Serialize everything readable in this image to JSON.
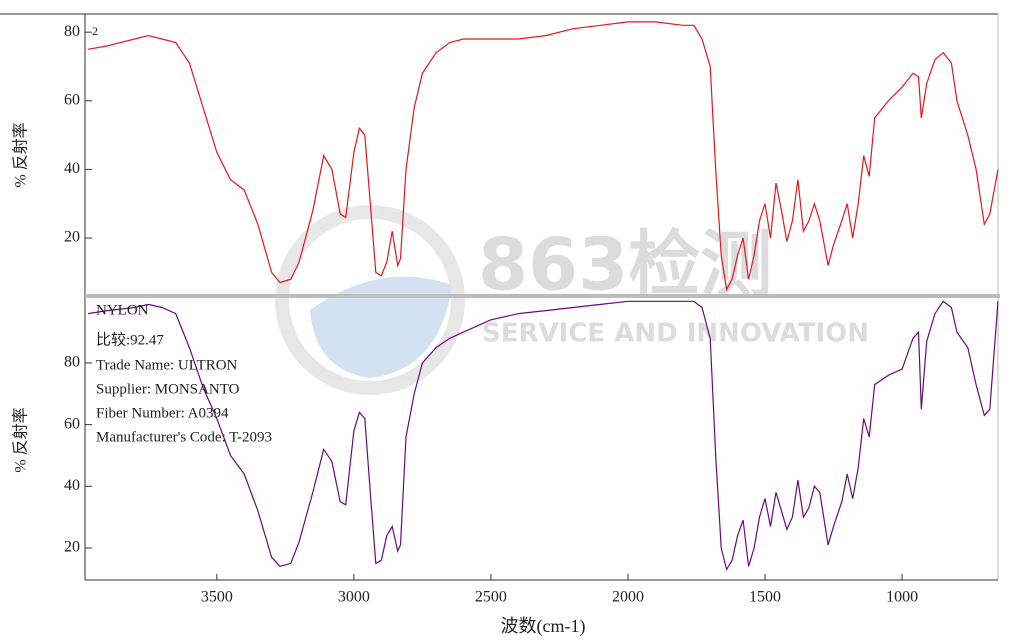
{
  "chart_data": [
    {
      "type": "line",
      "color": "#e8141c",
      "y_label": "% 反射率",
      "annotations": [
        "2"
      ],
      "xlim": [
        3970,
        650
      ],
      "ylim": [
        3.4,
        85
      ],
      "yticks": [
        20,
        40,
        60,
        80
      ],
      "x": [
        3970,
        3900,
        3800,
        3750,
        3700,
        3650,
        3600,
        3550,
        3500,
        3450,
        3400,
        3350,
        3300,
        3270,
        3230,
        3200,
        3150,
        3110,
        3080,
        3050,
        3030,
        3000,
        2980,
        2960,
        2940,
        2920,
        2900,
        2880,
        2860,
        2840,
        2830,
        2810,
        2780,
        2750,
        2700,
        2650,
        2600,
        2500,
        2400,
        2300,
        2200,
        2100,
        2000,
        1900,
        1800,
        1760,
        1730,
        1700,
        1680,
        1660,
        1640,
        1620,
        1600,
        1580,
        1560,
        1540,
        1520,
        1500,
        1480,
        1460,
        1440,
        1420,
        1400,
        1380,
        1360,
        1340,
        1320,
        1300,
        1270,
        1250,
        1220,
        1200,
        1180,
        1160,
        1140,
        1120,
        1100,
        1050,
        1000,
        960,
        940,
        930,
        910,
        880,
        850,
        820,
        800,
        760,
        730,
        700,
        680,
        650
      ],
      "values": [
        75,
        76,
        78,
        79,
        78,
        77,
        71,
        58,
        45,
        37,
        34,
        24,
        10,
        7,
        8,
        13,
        28,
        44,
        40,
        27,
        26,
        45,
        52,
        50,
        30,
        10,
        9,
        13,
        22,
        12,
        14,
        40,
        58,
        68,
        74,
        77,
        78,
        78,
        78,
        79,
        81,
        82,
        83,
        83,
        82,
        82,
        78,
        70,
        40,
        15,
        5,
        8,
        15,
        20,
        8,
        15,
        25,
        30,
        20,
        36,
        28,
        19,
        25,
        37,
        22,
        25,
        30,
        25,
        12,
        18,
        25,
        30,
        20,
        30,
        44,
        38,
        55,
        60,
        64,
        68,
        67,
        55,
        65,
        72,
        74,
        71,
        60,
        50,
        40,
        24,
        27,
        40
      ]
    },
    {
      "type": "line",
      "color": "#6a0a7a",
      "y_label": "% 反射率",
      "x_label": "波数(cm-1)",
      "annotations": [
        "NYLON",
        "比较:92.47",
        "Trade Name: ULTRON",
        "Supplier: MONSANTO",
        "Fiber Number: A0394",
        "Manufacturer's Code: T-2093"
      ],
      "xlim": [
        3970,
        650
      ],
      "ylim": [
        9.6,
        101.4
      ],
      "xticks": [
        3500,
        3000,
        2500,
        2000,
        1500,
        1000
      ],
      "yticks": [
        20,
        40,
        60,
        80
      ],
      "x": [
        3970,
        3900,
        3800,
        3750,
        3700,
        3650,
        3600,
        3550,
        3500,
        3450,
        3400,
        3350,
        3300,
        3270,
        3230,
        3200,
        3150,
        3110,
        3080,
        3050,
        3030,
        3000,
        2980,
        2960,
        2940,
        2920,
        2900,
        2880,
        2860,
        2840,
        2830,
        2810,
        2780,
        2750,
        2700,
        2650,
        2600,
        2500,
        2400,
        2300,
        2200,
        2100,
        2000,
        1900,
        1800,
        1760,
        1730,
        1700,
        1680,
        1660,
        1640,
        1620,
        1600,
        1580,
        1560,
        1540,
        1520,
        1500,
        1480,
        1460,
        1440,
        1420,
        1400,
        1380,
        1360,
        1340,
        1320,
        1300,
        1270,
        1250,
        1220,
        1200,
        1180,
        1160,
        1140,
        1120,
        1100,
        1050,
        1000,
        960,
        940,
        930,
        910,
        880,
        850,
        820,
        800,
        760,
        730,
        700,
        680,
        650
      ],
      "values": [
        96,
        97,
        98,
        99,
        98,
        96,
        85,
        72,
        62,
        50,
        44,
        32,
        17,
        14,
        15,
        22,
        38,
        52,
        48,
        35,
        34,
        58,
        64,
        62,
        38,
        15,
        16,
        24,
        27,
        19,
        21,
        56,
        70,
        80,
        85,
        88,
        90,
        94,
        96,
        97,
        98,
        99,
        100,
        100,
        100,
        100,
        98,
        88,
        50,
        20,
        13,
        16,
        24,
        29,
        14,
        20,
        30,
        36,
        27,
        38,
        32,
        26,
        30,
        42,
        30,
        33,
        40,
        38,
        21,
        27,
        35,
        44,
        36,
        46,
        62,
        56,
        73,
        76,
        78,
        88,
        90,
        65,
        87,
        96,
        100,
        98,
        90,
        85,
        73,
        63,
        65,
        100
      ]
    }
  ],
  "watermark": {
    "title": "863检测",
    "subtitle": "SERVICE AND INNOVATION"
  }
}
